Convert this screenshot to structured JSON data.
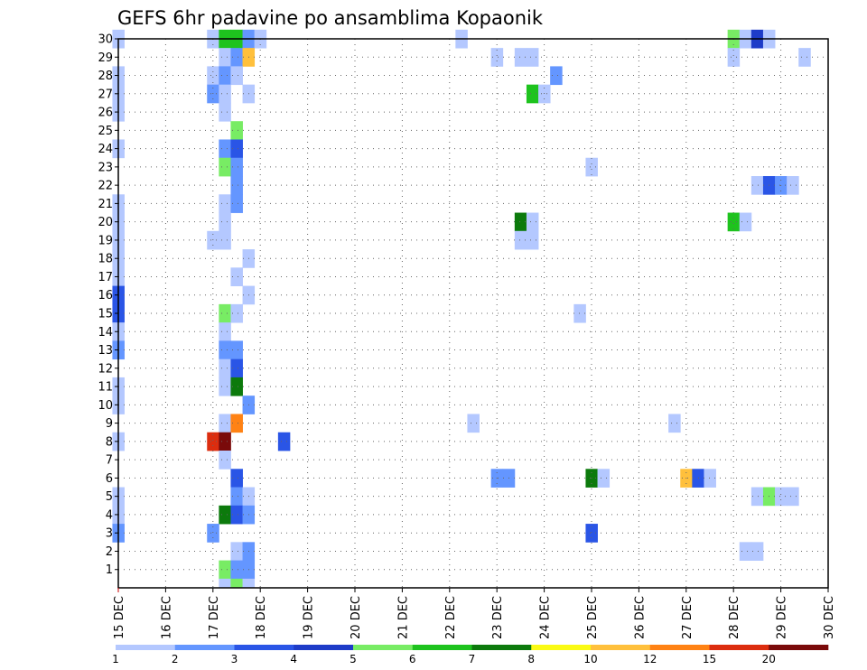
{
  "chart_data": {
    "type": "heatmap",
    "title": "GEFS 6hr padavine po ansamblima Kopaonik",
    "y_tick_labels": [
      "1",
      "2",
      "3",
      "4",
      "5",
      "6",
      "7",
      "8",
      "9",
      "10",
      "11",
      "12",
      "13",
      "14",
      "15",
      "16",
      "17",
      "18",
      "19",
      "20",
      "21",
      "22",
      "23",
      "24",
      "25",
      "26",
      "27",
      "28",
      "29",
      "30"
    ],
    "x_tick_labels": [
      "15 DEC",
      "16 DEC",
      "17 DEC",
      "18 DEC",
      "19 DEC",
      "20 DEC",
      "21 DEC",
      "22 DEC",
      "23 DEC",
      "24 DEC",
      "25 DEC",
      "26 DEC",
      "27 DEC",
      "28 DEC",
      "29 DEC",
      "30 DEC"
    ],
    "x_start_day": 15,
    "steps_per_day": 4,
    "y_range": [
      0,
      30
    ],
    "grid": true,
    "legend_position": "bottom",
    "levels": [
      "1",
      "2",
      "3",
      "4",
      "5",
      "6",
      "7",
      "8",
      "10",
      "12",
      "15",
      "20"
    ],
    "level_colors": [
      "#b4c8ff",
      "#6496ff",
      "#2a55e6",
      "#1e3cc8",
      "#78ec64",
      "#1ec31e",
      "#0c7a0c",
      "#fafa14",
      "#ffc03c",
      "#ff8214",
      "#dc2d0f",
      "#7a0a0a"
    ],
    "cells": [
      {
        "m": 30,
        "d": 15.0,
        "c": 0
      },
      {
        "m": 30,
        "d": 17.0,
        "c": 0
      },
      {
        "m": 30,
        "d": 17.25,
        "c": 5
      },
      {
        "m": 30,
        "d": 17.5,
        "c": 5
      },
      {
        "m": 30,
        "d": 17.75,
        "c": 1
      },
      {
        "m": 30,
        "d": 18.0,
        "c": 0
      },
      {
        "m": 30,
        "d": 22.25,
        "c": 0
      },
      {
        "m": 30,
        "d": 28.0,
        "c": 4
      },
      {
        "m": 30,
        "d": 28.25,
        "c": 0
      },
      {
        "m": 30,
        "d": 28.5,
        "c": 3
      },
      {
        "m": 30,
        "d": 28.75,
        "c": 0
      },
      {
        "m": 29,
        "d": 17.25,
        "c": 0
      },
      {
        "m": 29,
        "d": 17.5,
        "c": 1
      },
      {
        "m": 29,
        "d": 17.75,
        "c": 8
      },
      {
        "m": 29,
        "d": 23.0,
        "c": 0
      },
      {
        "m": 29,
        "d": 23.5,
        "c": 0
      },
      {
        "m": 29,
        "d": 23.75,
        "c": 0
      },
      {
        "m": 29,
        "d": 28.0,
        "c": 0
      },
      {
        "m": 29,
        "d": 29.5,
        "c": 0
      },
      {
        "m": 28,
        "d": 15.0,
        "c": 0
      },
      {
        "m": 28,
        "d": 17.0,
        "c": 0
      },
      {
        "m": 28,
        "d": 17.25,
        "c": 1
      },
      {
        "m": 28,
        "d": 17.5,
        "c": 0
      },
      {
        "m": 28,
        "d": 24.25,
        "c": 1
      },
      {
        "m": 27,
        "d": 15.0,
        "c": 0
      },
      {
        "m": 27,
        "d": 17.0,
        "c": 1
      },
      {
        "m": 27,
        "d": 17.25,
        "c": 0
      },
      {
        "m": 27,
        "d": 17.75,
        "c": 0
      },
      {
        "m": 27,
        "d": 23.75,
        "c": 5
      },
      {
        "m": 27,
        "d": 24.0,
        "c": 0
      },
      {
        "m": 26,
        "d": 15.0,
        "c": 0
      },
      {
        "m": 26,
        "d": 17.25,
        "c": 0
      },
      {
        "m": 25,
        "d": 17.5,
        "c": 4
      },
      {
        "m": 24,
        "d": 15.0,
        "c": 0
      },
      {
        "m": 24,
        "d": 17.25,
        "c": 1
      },
      {
        "m": 24,
        "d": 17.5,
        "c": 2
      },
      {
        "m": 23,
        "d": 17.25,
        "c": 4
      },
      {
        "m": 23,
        "d": 17.5,
        "c": 1
      },
      {
        "m": 23,
        "d": 25.0,
        "c": 0
      },
      {
        "m": 22,
        "d": 17.5,
        "c": 1
      },
      {
        "m": 22,
        "d": 28.5,
        "c": 0
      },
      {
        "m": 22,
        "d": 28.75,
        "c": 2
      },
      {
        "m": 22,
        "d": 29.0,
        "c": 1
      },
      {
        "m": 22,
        "d": 29.25,
        "c": 0
      },
      {
        "m": 21,
        "d": 15.0,
        "c": 0
      },
      {
        "m": 21,
        "d": 17.25,
        "c": 0
      },
      {
        "m": 21,
        "d": 17.5,
        "c": 1
      },
      {
        "m": 20,
        "d": 15.0,
        "c": 0
      },
      {
        "m": 20,
        "d": 17.25,
        "c": 0
      },
      {
        "m": 20,
        "d": 23.5,
        "c": 6
      },
      {
        "m": 20,
        "d": 23.75,
        "c": 0
      },
      {
        "m": 20,
        "d": 28.0,
        "c": 5
      },
      {
        "m": 20,
        "d": 28.25,
        "c": 0
      },
      {
        "m": 19,
        "d": 15.0,
        "c": 0
      },
      {
        "m": 19,
        "d": 17.0,
        "c": 0
      },
      {
        "m": 19,
        "d": 17.25,
        "c": 0
      },
      {
        "m": 19,
        "d": 23.5,
        "c": 0
      },
      {
        "m": 19,
        "d": 23.75,
        "c": 0
      },
      {
        "m": 18,
        "d": 15.0,
        "c": 0
      },
      {
        "m": 18,
        "d": 17.75,
        "c": 0
      },
      {
        "m": 17,
        "d": 15.0,
        "c": 0
      },
      {
        "m": 17,
        "d": 17.5,
        "c": 0
      },
      {
        "m": 16,
        "d": 15.0,
        "c": 2
      },
      {
        "m": 16,
        "d": 17.75,
        "c": 0
      },
      {
        "m": 15,
        "d": 15.0,
        "c": 2
      },
      {
        "m": 15,
        "d": 17.25,
        "c": 4
      },
      {
        "m": 15,
        "d": 17.5,
        "c": 0
      },
      {
        "m": 15,
        "d": 24.75,
        "c": 0
      },
      {
        "m": 14,
        "d": 15.0,
        "c": 0
      },
      {
        "m": 14,
        "d": 17.25,
        "c": 0
      },
      {
        "m": 13,
        "d": 15.0,
        "c": 1
      },
      {
        "m": 13,
        "d": 17.25,
        "c": 1
      },
      {
        "m": 13,
        "d": 17.5,
        "c": 1
      },
      {
        "m": 12,
        "d": 17.25,
        "c": 0
      },
      {
        "m": 12,
        "d": 17.5,
        "c": 2
      },
      {
        "m": 11,
        "d": 15.0,
        "c": 0
      },
      {
        "m": 11,
        "d": 17.25,
        "c": 0
      },
      {
        "m": 11,
        "d": 17.5,
        "c": 6
      },
      {
        "m": 10,
        "d": 15.0,
        "c": 0
      },
      {
        "m": 10,
        "d": 17.75,
        "c": 1
      },
      {
        "m": 9,
        "d": 17.25,
        "c": 0
      },
      {
        "m": 9,
        "d": 17.5,
        "c": 9
      },
      {
        "m": 9,
        "d": 22.5,
        "c": 0
      },
      {
        "m": 9,
        "d": 26.75,
        "c": 0
      },
      {
        "m": 8,
        "d": 15.0,
        "c": 0
      },
      {
        "m": 8,
        "d": 17.0,
        "c": 10
      },
      {
        "m": 8,
        "d": 17.25,
        "c": 11
      },
      {
        "m": 8,
        "d": 18.5,
        "c": 2
      },
      {
        "m": 7,
        "d": 17.25,
        "c": 0
      },
      {
        "m": 6,
        "d": 17.5,
        "c": 2
      },
      {
        "m": 6,
        "d": 23.0,
        "c": 1
      },
      {
        "m": 6,
        "d": 23.25,
        "c": 1
      },
      {
        "m": 6,
        "d": 25.0,
        "c": 6
      },
      {
        "m": 6,
        "d": 25.25,
        "c": 0
      },
      {
        "m": 6,
        "d": 27.0,
        "c": 8
      },
      {
        "m": 6,
        "d": 27.25,
        "c": 2
      },
      {
        "m": 6,
        "d": 27.5,
        "c": 0
      },
      {
        "m": 5,
        "d": 15.0,
        "c": 0
      },
      {
        "m": 5,
        "d": 17.5,
        "c": 1
      },
      {
        "m": 5,
        "d": 17.75,
        "c": 0
      },
      {
        "m": 5,
        "d": 28.5,
        "c": 0
      },
      {
        "m": 5,
        "d": 28.75,
        "c": 4
      },
      {
        "m": 5,
        "d": 29.0,
        "c": 0
      },
      {
        "m": 5,
        "d": 29.25,
        "c": 0
      },
      {
        "m": 4,
        "d": 15.0,
        "c": 0
      },
      {
        "m": 4,
        "d": 17.25,
        "c": 6
      },
      {
        "m": 4,
        "d": 17.5,
        "c": 2
      },
      {
        "m": 4,
        "d": 17.75,
        "c": 1
      },
      {
        "m": 3,
        "d": 15.0,
        "c": 1
      },
      {
        "m": 3,
        "d": 17.0,
        "c": 1
      },
      {
        "m": 3,
        "d": 25.0,
        "c": 2
      },
      {
        "m": 2,
        "d": 17.5,
        "c": 0
      },
      {
        "m": 2,
        "d": 17.75,
        "c": 1
      },
      {
        "m": 2,
        "d": 28.25,
        "c": 0
      },
      {
        "m": 2,
        "d": 28.5,
        "c": 0
      },
      {
        "m": 1,
        "d": 17.25,
        "c": 4
      },
      {
        "m": 1,
        "d": 17.5,
        "c": 1
      },
      {
        "m": 1,
        "d": 17.75,
        "c": 1
      },
      {
        "m": 0,
        "d": 17.25,
        "c": 0
      },
      {
        "m": 0,
        "d": 17.5,
        "c": 4
      },
      {
        "m": 0,
        "d": 17.75,
        "c": 0
      }
    ]
  }
}
